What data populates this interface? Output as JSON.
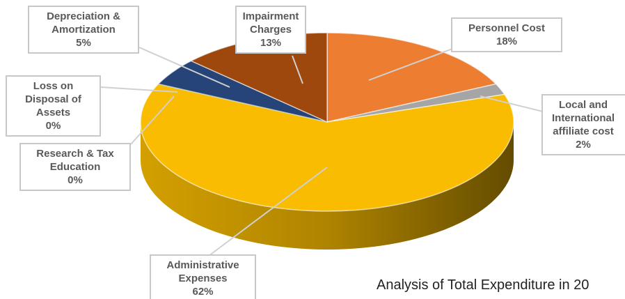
{
  "chart_data": {
    "type": "pie",
    "title": "Analysis of Total Expenditure in 20",
    "categories": [
      "Personnel Cost",
      "Local and International affiliate cost",
      "Administrative Expenses",
      "Research & Tax Education",
      "Loss on Disposal of Assets",
      "Depreciation & Amortization",
      "Impairment Charges"
    ],
    "values": [
      18,
      2,
      62,
      0,
      0,
      5,
      13
    ],
    "value_labels": [
      "18%",
      "2%",
      "62%",
      "0%",
      "0%",
      "5%",
      "13%"
    ],
    "colors": [
      "#ed7d31",
      "#a5a5a5",
      "#f9bc00",
      "#5b9bd5",
      "#70ad47",
      "#264478",
      "#9e480e"
    ]
  }
}
